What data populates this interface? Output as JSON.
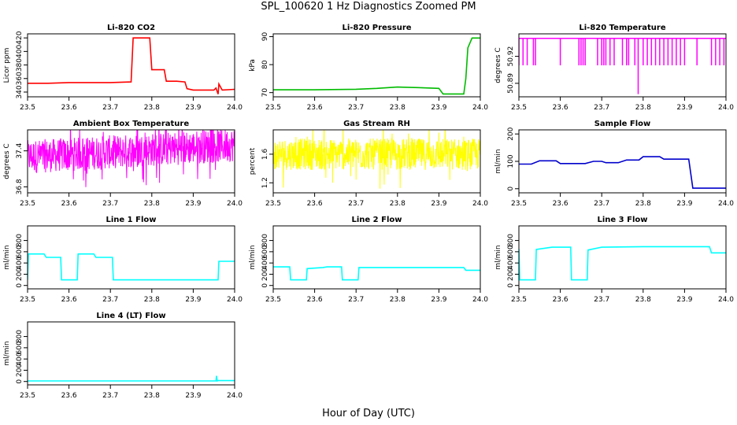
{
  "figure": {
    "title": "SPL_100620  1 Hz Diagnostics Zoomed PM",
    "xlabel": "Hour of Day (UTC)"
  },
  "chart_data": [
    {
      "type": "line",
      "title": "Li-820 CO2",
      "ylabel": "Licor ppm",
      "color": "#ff0000",
      "xlim": [
        23.5,
        24.0
      ],
      "ylim": [
        333,
        426
      ],
      "xticks": [
        "23.5",
        "23.6",
        "23.7",
        "23.8",
        "23.9",
        "24.0"
      ],
      "yticks": [
        "340",
        "360",
        "380",
        "400",
        "420"
      ],
      "series": [
        {
          "x": [
            23.5,
            23.55,
            23.6,
            23.65,
            23.7,
            23.75,
            23.755,
            23.78,
            23.795,
            23.8,
            23.83,
            23.835,
            23.86,
            23.88,
            23.885,
            23.9,
            23.95,
            23.955,
            23.96,
            23.962,
            23.97,
            24.0
          ],
          "y": [
            353,
            353,
            354,
            354,
            354,
            355,
            420,
            420,
            420,
            373,
            373,
            356,
            356,
            355,
            345,
            343,
            343,
            346,
            337,
            352,
            343,
            344
          ]
        }
      ]
    },
    {
      "type": "line",
      "title": "Li-820 Pressure",
      "ylabel": "kPa",
      "color": "#00bb00",
      "xlim": [
        23.5,
        24.0
      ],
      "ylim": [
        68.5,
        91
      ],
      "xticks": [
        "23.5",
        "23.6",
        "23.7",
        "23.8",
        "23.9",
        "24.0"
      ],
      "yticks": [
        "70",
        "80",
        "90"
      ],
      "series": [
        {
          "x": [
            23.5,
            23.6,
            23.7,
            23.75,
            23.8,
            23.85,
            23.9,
            23.91,
            23.96,
            23.965,
            23.97,
            23.98,
            24.0
          ],
          "y": [
            71,
            71,
            71.2,
            71.5,
            72,
            71.8,
            71.5,
            69.5,
            69.5,
            75,
            86,
            89.5,
            89.5
          ]
        }
      ]
    },
    {
      "type": "line",
      "title": "Li-820 Temperature",
      "ylabel": "degrees C",
      "color": "#ff00ff",
      "xlim": [
        23.5,
        24.0
      ],
      "ylim": [
        50.875,
        50.945
      ],
      "xticks": [
        "23.5",
        "23.6",
        "23.7",
        "23.8",
        "23.9",
        "24.0"
      ],
      "yticks": [
        "50.89",
        "50.92"
      ],
      "base": 50.94,
      "low": 50.91,
      "spike_x": [
        23.5,
        23.51,
        23.52,
        23.535,
        23.54,
        23.6,
        23.645,
        23.65,
        23.655,
        23.66,
        23.69,
        23.7,
        23.705,
        23.71,
        23.72,
        23.73,
        23.75,
        23.76,
        23.765,
        23.78,
        23.8,
        23.81,
        23.82,
        23.83,
        23.84,
        23.85,
        23.86,
        23.87,
        23.88,
        23.89,
        23.9,
        23.93,
        23.965,
        23.975,
        23.985,
        23.995
      ],
      "deep_spike": {
        "x": 23.788,
        "y": 50.878
      }
    },
    {
      "type": "line",
      "title": "Ambient Box Temperature",
      "ylabel": "degrees C",
      "color": "#ff00ff",
      "xlim": [
        23.5,
        24.0
      ],
      "ylim": [
        36.7,
        37.75
      ],
      "xticks": [
        "23.5",
        "23.6",
        "23.7",
        "23.8",
        "23.9",
        "24.0"
      ],
      "yticks": [
        "36.8",
        "37.4"
      ],
      "noise": {
        "center_start": 37.3,
        "center_end": 37.5,
        "amplitude": 0.28,
        "points": 700
      }
    },
    {
      "type": "line",
      "title": "Gas Stream RH",
      "ylabel": "percent",
      "color": "#ffff00",
      "xlim": [
        23.5,
        24.0
      ],
      "ylim": [
        1.06,
        1.94
      ],
      "xticks": [
        "23.5",
        "23.6",
        "23.7",
        "23.8",
        "23.9",
        "24.0"
      ],
      "yticks": [
        "1.2",
        "1.6"
      ],
      "noise": {
        "center_start": 1.6,
        "center_end": 1.6,
        "amplitude": 0.22,
        "points": 700
      }
    },
    {
      "type": "line",
      "title": "Sample Flow",
      "ylabel": "ml/min",
      "color": "#0000cc",
      "xlim": [
        23.5,
        24.0
      ],
      "ylim": [
        -15,
        215
      ],
      "xticks": [
        "23.5",
        "23.6",
        "23.7",
        "23.8",
        "23.9",
        "24.0"
      ],
      "yticks": [
        "0",
        "100",
        "200"
      ],
      "series": [
        {
          "x": [
            23.5,
            23.53,
            23.55,
            23.59,
            23.6,
            23.66,
            23.68,
            23.7,
            23.71,
            23.74,
            23.76,
            23.79,
            23.8,
            23.84,
            23.85,
            23.91,
            23.92,
            24.0
          ],
          "y": [
            90,
            90,
            102,
            102,
            92,
            92,
            100,
            100,
            95,
            95,
            105,
            105,
            117,
            117,
            108,
            108,
            2,
            2
          ]
        }
      ]
    },
    {
      "type": "line",
      "title": "Line 1 Flow",
      "ylabel": "ml/min",
      "color": "#00ffff",
      "xlim": [
        23.5,
        24.0
      ],
      "ylim": [
        -60,
        1060
      ],
      "xticks": [
        "23.5",
        "23.6",
        "23.7",
        "23.8",
        "23.9",
        "24.0"
      ],
      "yticks": [
        "0",
        "200",
        "400",
        "600",
        "800"
      ],
      "series": [
        {
          "x": [
            23.5,
            23.502,
            23.54,
            23.545,
            23.58,
            23.582,
            23.62,
            23.622,
            23.66,
            23.665,
            23.705,
            23.707,
            23.95,
            23.96,
            23.962,
            24.0
          ],
          "y": [
            100,
            560,
            560,
            500,
            500,
            100,
            100,
            560,
            560,
            500,
            500,
            100,
            100,
            100,
            430,
            430
          ]
        }
      ]
    },
    {
      "type": "line",
      "title": "Line 2 Flow",
      "ylabel": "ml/min",
      "color": "#00ffff",
      "xlim": [
        23.5,
        24.0
      ],
      "ylim": [
        -60,
        1060
      ],
      "xticks": [
        "23.5",
        "23.6",
        "23.7",
        "23.8",
        "23.9",
        "24.0"
      ],
      "yticks": [
        "0",
        "200",
        "400",
        "600",
        "800"
      ],
      "series": [
        {
          "x": [
            23.5,
            23.54,
            23.542,
            23.58,
            23.582,
            23.62,
            23.63,
            23.665,
            23.667,
            23.705,
            23.707,
            23.96,
            23.965,
            24.0
          ],
          "y": [
            330,
            330,
            100,
            100,
            300,
            320,
            330,
            330,
            100,
            100,
            320,
            320,
            270,
            270
          ]
        }
      ]
    },
    {
      "type": "line",
      "title": "Line 3 Flow",
      "ylabel": "ml/min",
      "color": "#00ffff",
      "xlim": [
        23.5,
        24.0
      ],
      "ylim": [
        -60,
        1060
      ],
      "xticks": [
        "23.5",
        "23.6",
        "23.7",
        "23.8",
        "23.9",
        "24.0"
      ],
      "yticks": [
        "0",
        "200",
        "400",
        "600",
        "800"
      ],
      "series": [
        {
          "x": [
            23.5,
            23.502,
            23.505,
            23.54,
            23.542,
            23.58,
            23.625,
            23.627,
            23.665,
            23.667,
            23.7,
            23.8,
            23.96,
            23.965,
            24.0
          ],
          "y": [
            650,
            100,
            100,
            100,
            640,
            680,
            680,
            100,
            100,
            630,
            680,
            690,
            690,
            580,
            580
          ]
        }
      ]
    },
    {
      "type": "line",
      "title": "Line 4 (LT) Flow",
      "ylabel": "ml/min",
      "color": "#00ffff",
      "xlim": [
        23.5,
        24.0
      ],
      "ylim": [
        -60,
        1060
      ],
      "xticks": [
        "23.5",
        "23.6",
        "23.7",
        "23.8",
        "23.9",
        "24.0"
      ],
      "yticks": [
        "0",
        "200",
        "400",
        "600",
        "800"
      ],
      "series": [
        {
          "x": [
            23.5,
            23.955,
            23.956,
            23.958,
            23.96,
            24.0
          ],
          "y": [
            10,
            10,
            100,
            10,
            15,
            15
          ]
        }
      ]
    }
  ]
}
